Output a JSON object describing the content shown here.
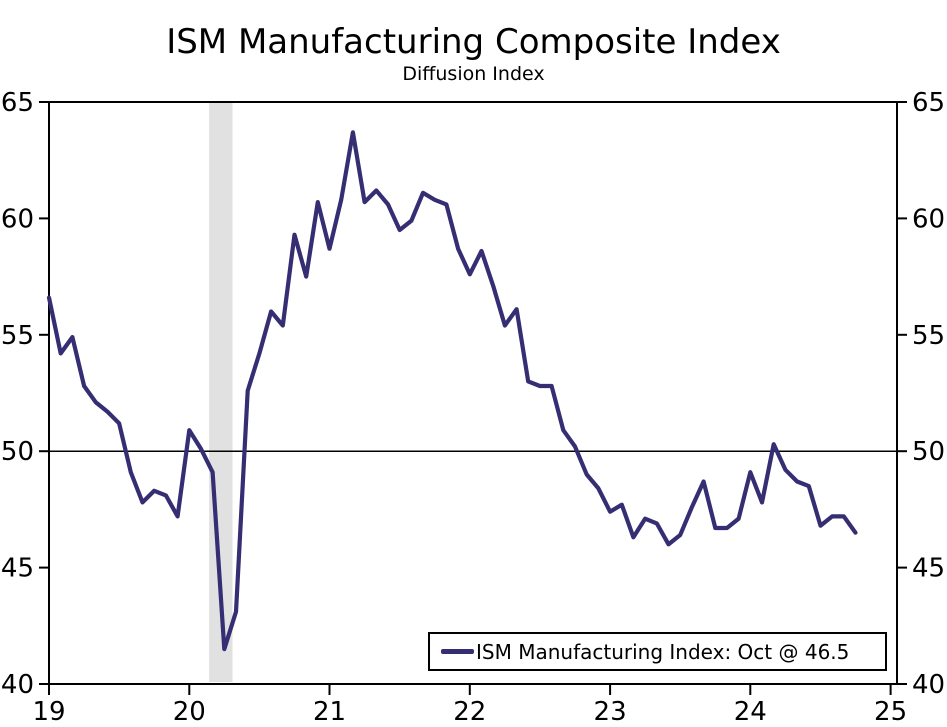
{
  "title": "ISM Manufacturing Composite Index",
  "subtitle": "Diffusion Index",
  "legend": {
    "label": "ISM Manufacturing Index: Oct @ 46.5"
  },
  "colors": {
    "line": "#352e73",
    "recession_band": "#e1e1e1",
    "axis": "#000000",
    "reference_line": "#000000",
    "background": "#ffffff"
  },
  "chart_data": {
    "type": "line",
    "title": "ISM Manufacturing Composite Index",
    "subtitle": "Diffusion Index",
    "frequency": "monthly",
    "x_start": "2019-01",
    "x_end": "2024-10",
    "ylim": [
      40,
      65
    ],
    "y_ticks": [
      40,
      45,
      50,
      55,
      60,
      65
    ],
    "y_axis_sides": [
      "left",
      "right"
    ],
    "x_tick_labels": [
      "19",
      "20",
      "21",
      "22",
      "23",
      "24",
      "25"
    ],
    "x_tick_month_indices": [
      0,
      12,
      24,
      36,
      48,
      60,
      72
    ],
    "reference_line_y": 50,
    "grid": "off",
    "legend_position": "bottom-right",
    "recession_band": {
      "start": "2020-02",
      "end": "2020-04",
      "start_month_index": 13.7,
      "end_month_index": 15.7
    },
    "series": [
      {
        "name": "ISM Manufacturing Index",
        "latest_point_label": "Oct @ 46.5",
        "months": [
          "2019-01",
          "2019-02",
          "2019-03",
          "2019-04",
          "2019-05",
          "2019-06",
          "2019-07",
          "2019-08",
          "2019-09",
          "2019-10",
          "2019-11",
          "2019-12",
          "2020-01",
          "2020-02",
          "2020-03",
          "2020-04",
          "2020-05",
          "2020-06",
          "2020-07",
          "2020-08",
          "2020-09",
          "2020-10",
          "2020-11",
          "2020-12",
          "2021-01",
          "2021-02",
          "2021-03",
          "2021-04",
          "2021-05",
          "2021-06",
          "2021-07",
          "2021-08",
          "2021-09",
          "2021-10",
          "2021-11",
          "2021-12",
          "2022-01",
          "2022-02",
          "2022-03",
          "2022-04",
          "2022-05",
          "2022-06",
          "2022-07",
          "2022-08",
          "2022-09",
          "2022-10",
          "2022-11",
          "2022-12",
          "2023-01",
          "2023-02",
          "2023-03",
          "2023-04",
          "2023-05",
          "2023-06",
          "2023-07",
          "2023-08",
          "2023-09",
          "2023-10",
          "2023-11",
          "2023-12",
          "2024-01",
          "2024-02",
          "2024-03",
          "2024-04",
          "2024-05",
          "2024-06",
          "2024-07",
          "2024-08",
          "2024-09",
          "2024-10"
        ],
        "values": [
          56.6,
          54.2,
          54.9,
          52.8,
          52.1,
          51.7,
          51.2,
          49.1,
          47.8,
          48.3,
          48.1,
          47.2,
          50.9,
          50.1,
          49.1,
          41.5,
          43.1,
          52.6,
          54.2,
          56.0,
          55.4,
          59.3,
          57.5,
          60.7,
          58.7,
          60.8,
          63.7,
          60.7,
          61.2,
          60.6,
          59.5,
          59.9,
          61.1,
          60.8,
          60.6,
          58.7,
          57.6,
          58.6,
          57.1,
          55.4,
          56.1,
          53.0,
          52.8,
          52.8,
          50.9,
          50.2,
          49.0,
          48.4,
          47.4,
          47.7,
          46.3,
          47.1,
          46.9,
          46.0,
          46.4,
          47.6,
          48.7,
          46.7,
          46.7,
          47.1,
          49.1,
          47.8,
          50.3,
          49.2,
          48.7,
          48.5,
          46.8,
          47.2,
          47.2,
          46.5
        ]
      }
    ]
  }
}
